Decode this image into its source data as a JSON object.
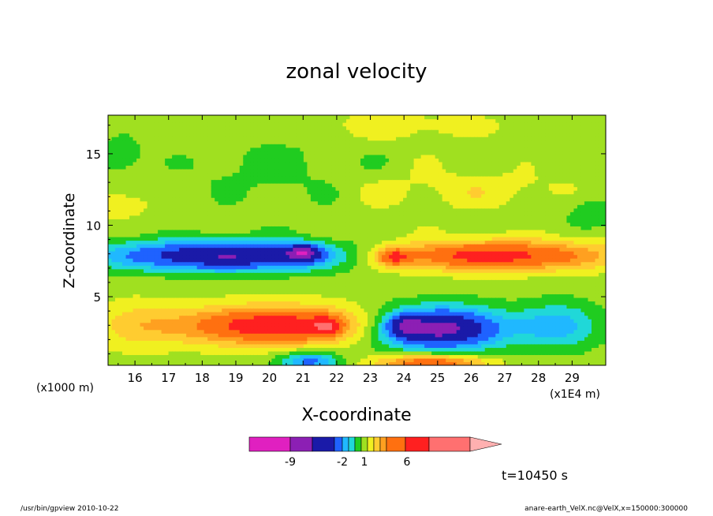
{
  "chart_data": {
    "type": "heatmap",
    "title": "zonal velocity",
    "xlabel": "X-coordinate",
    "ylabel": "Z-coordinate",
    "x_unit": "(x1E4 m)",
    "z_unit": "(x1000 m)",
    "xlim": [
      15.2,
      30.0
    ],
    "ylim": [
      0.2,
      17.7
    ],
    "x_ticks": [
      16,
      17,
      18,
      19,
      20,
      21,
      22,
      23,
      24,
      25,
      26,
      27,
      28,
      29
    ],
    "y_ticks": [
      5,
      10,
      15
    ],
    "colorbar": {
      "colors": [
        "#e020c0",
        "#8c1fb4",
        "#1a1aa8",
        "#1f62ff",
        "#20b8ff",
        "#20d8d8",
        "#20cc20",
        "#a0e020",
        "#f0f020",
        "#ffcc30",
        "#ffa020",
        "#ff7010",
        "#ff2020",
        "#ff7070",
        "#ffb0b0"
      ],
      "labels": [
        {
          "text": "-9",
          "value": -9
        },
        {
          "text": "-2",
          "value": -2
        },
        {
          "text": "1",
          "value": 1
        },
        {
          "text": "6",
          "value": 6
        }
      ]
    },
    "features": [
      {
        "name": "lower-left positive jet",
        "x": [
          16.5,
          22.0
        ],
        "z": [
          1.5,
          4.5
        ],
        "value": 6
      },
      {
        "name": "upper-left negative jet",
        "x": [
          15.2,
          22.0
        ],
        "z": [
          6.0,
          9.8
        ],
        "value": -7
      },
      {
        "name": "upper-right positive jet",
        "x": [
          23.0,
          30.0
        ],
        "z": [
          6.0,
          9.8
        ],
        "value": 5
      },
      {
        "name": "lower-right negative jet",
        "x": [
          23.0,
          27.0
        ],
        "z": [
          1.0,
          4.8
        ],
        "value": -8
      }
    ]
  },
  "time_label": "t=10450 s",
  "footer_left": "/usr/bin/gpview   2010-10-22",
  "footer_right": "anare-earth_VelX.nc@VelX,x=150000:300000"
}
